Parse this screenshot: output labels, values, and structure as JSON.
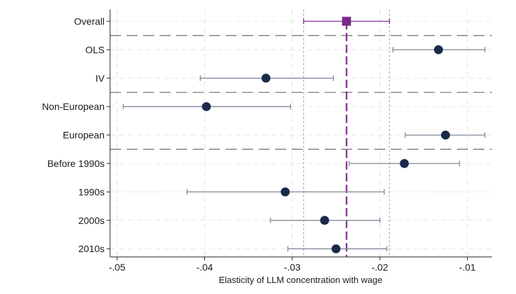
{
  "chart_data": {
    "type": "scatter",
    "subtype": "forest-plot",
    "title": "",
    "xlabel": "Elasticity of LLM concentration with wage",
    "ylabel": "",
    "xlim": [
      -0.0508,
      -0.0072
    ],
    "xticks": [
      -0.05,
      -0.04,
      -0.03,
      -0.02,
      -0.01
    ],
    "xtick_labels": [
      "-.05",
      "-.04",
      "-.03",
      "-.02",
      "-.01"
    ],
    "grid": true,
    "rows": [
      {
        "label": "Overall",
        "estimate": -0.0238,
        "ci_low": -0.0287,
        "ci_high": -0.0189,
        "marker": "square",
        "color": "#7b2a8c"
      },
      {
        "label": "OLS",
        "estimate": -0.0133,
        "ci_low": -0.0185,
        "ci_high": -0.008,
        "marker": "circle",
        "color": "#1b2a4a"
      },
      {
        "label": "IV",
        "estimate": -0.033,
        "ci_low": -0.0405,
        "ci_high": -0.0253,
        "marker": "circle",
        "color": "#1b2a4a"
      },
      {
        "label": "Non-European",
        "estimate": -0.0398,
        "ci_low": -0.0493,
        "ci_high": -0.0302,
        "marker": "circle",
        "color": "#1b2a4a"
      },
      {
        "label": "European",
        "estimate": -0.0125,
        "ci_low": -0.0171,
        "ci_high": -0.008,
        "marker": "circle",
        "color": "#1b2a4a"
      },
      {
        "label": "Before 1990s",
        "estimate": -0.0172,
        "ci_low": -0.0235,
        "ci_high": -0.0109,
        "marker": "circle",
        "color": "#1b2a4a"
      },
      {
        "label": "1990s",
        "estimate": -0.0308,
        "ci_low": -0.042,
        "ci_high": -0.0195,
        "marker": "circle",
        "color": "#1b2a4a"
      },
      {
        "label": "2000s",
        "estimate": -0.0263,
        "ci_low": -0.0325,
        "ci_high": -0.02,
        "marker": "circle",
        "color": "#1b2a4a"
      },
      {
        "label": "2010s",
        "estimate": -0.025,
        "ci_low": -0.0305,
        "ci_high": -0.0192,
        "marker": "circle",
        "color": "#1b2a4a"
      }
    ],
    "reference_line": {
      "value": -0.0238,
      "style": "dashed",
      "color": "#7b2a8c"
    },
    "reference_band_lines": [
      -0.0287,
      -0.0189
    ],
    "group_separators_after": [
      "Overall",
      "IV",
      "European"
    ]
  }
}
